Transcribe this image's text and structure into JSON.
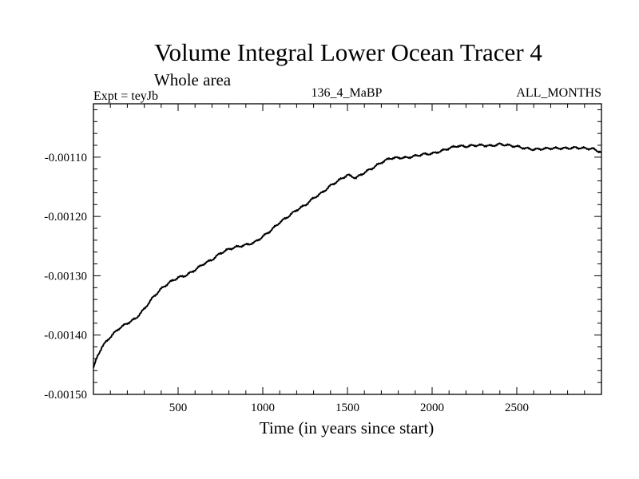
{
  "chart_data": {
    "type": "line",
    "title": "Volume Integral Lower Ocean Tracer 4",
    "subtitle": "Whole area",
    "annotations": {
      "left": "Expt = teyJb",
      "center": "136_4_MaBP",
      "right": "ALL_MONTHS"
    },
    "xlabel": "Time (in years since start)",
    "ylabel": "",
    "xlim": [
      0,
      3000
    ],
    "ylim": [
      -0.0015,
      -0.00101
    ],
    "x_ticks": [
      500,
      1000,
      1500,
      2000,
      2500
    ],
    "x_tick_labels": [
      "500",
      "1000",
      "1500",
      "2000",
      "2500"
    ],
    "y_ticks": [
      -0.0015,
      -0.0014,
      -0.0013,
      -0.0012,
      -0.0011
    ],
    "y_tick_labels": [
      "-0.00150",
      "-0.00140",
      "-0.00130",
      "-0.00120",
      "-0.00110"
    ],
    "grid": false,
    "legend": "none",
    "series": [
      {
        "name": "Volume Integral Lower Ocean Tracer 4",
        "color": "#000000",
        "x": [
          0,
          25,
          50,
          100,
          150,
          200,
          250,
          300,
          350,
          400,
          450,
          500,
          550,
          600,
          650,
          700,
          750,
          800,
          850,
          900,
          950,
          1000,
          1050,
          1100,
          1150,
          1200,
          1250,
          1300,
          1350,
          1400,
          1450,
          1500,
          1550,
          1600,
          1650,
          1700,
          1750,
          1800,
          1850,
          1900,
          1950,
          2000,
          2050,
          2100,
          2150,
          2200,
          2250,
          2300,
          2350,
          2400,
          2450,
          2500,
          2550,
          2600,
          2650,
          2700,
          2750,
          2800,
          2850,
          2900,
          2950,
          3000
        ],
        "y": [
          -0.001455,
          -0.001435,
          -0.00142,
          -0.001403,
          -0.001389,
          -0.00138,
          -0.001372,
          -0.001356,
          -0.001337,
          -0.001322,
          -0.001311,
          -0.001303,
          -0.001299,
          -0.00129,
          -0.00128,
          -0.001273,
          -0.001262,
          -0.001255,
          -0.001251,
          -0.001248,
          -0.001244,
          -0.001234,
          -0.001223,
          -0.00121,
          -0.0012,
          -0.001189,
          -0.001181,
          -0.001169,
          -0.00116,
          -0.001148,
          -0.001139,
          -0.00113,
          -0.001135,
          -0.001126,
          -0.001118,
          -0.001109,
          -0.001102,
          -0.001101,
          -0.001101,
          -0.001098,
          -0.001095,
          -0.001094,
          -0.00109,
          -0.001085,
          -0.001081,
          -0.001082,
          -0.00108,
          -0.00108,
          -0.001081,
          -0.001078,
          -0.00108,
          -0.001082,
          -0.001085,
          -0.001087,
          -0.001086,
          -0.001085,
          -0.001085,
          -0.001085,
          -0.001084,
          -0.001085,
          -0.001086,
          -0.001092
        ]
      }
    ]
  }
}
